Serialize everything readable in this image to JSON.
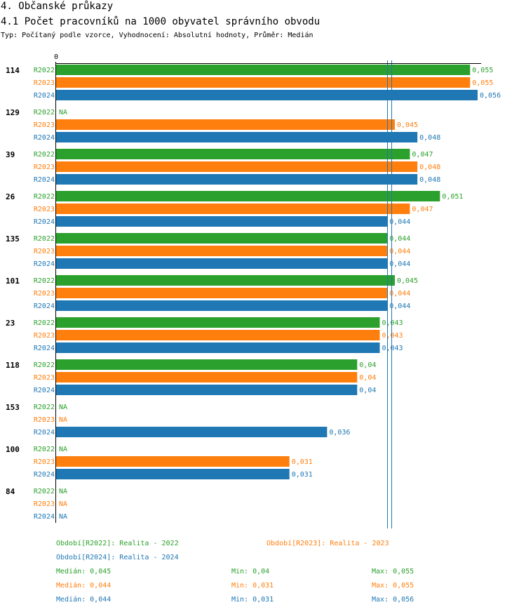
{
  "header": {
    "section": "4. Občanské průkazy",
    "title": "4.1 Počet pracovníků na 1000 obyvatel správního obvodu",
    "subtitle": "Typ: Počítaný podle vzorce, Vyhodnocení: Absolutní hodnoty, Průměr: Medián"
  },
  "colors": {
    "R2022": "#2ca02c",
    "R2023": "#ff7f0e",
    "R2024": "#1f77b4"
  },
  "chart_data": {
    "type": "bar",
    "orientation": "horizontal",
    "axis_origin_label": "0",
    "xlim": [
      0,
      0.056
    ],
    "na_label": "NA",
    "series_names": [
      "R2022",
      "R2023",
      "R2024"
    ],
    "categories": [
      "114",
      "129",
      "39",
      "26",
      "135",
      "101",
      "23",
      "118",
      "153",
      "100",
      "84"
    ],
    "series": [
      {
        "name": "R2022",
        "values": [
          0.055,
          null,
          0.047,
          0.051,
          0.044,
          0.045,
          0.043,
          0.04,
          null,
          null,
          null
        ],
        "labels": [
          "0,055",
          "NA",
          "0,047",
          "0,051",
          "0,044",
          "0,045",
          "0,043",
          "0,04",
          "NA",
          "NA",
          "NA"
        ]
      },
      {
        "name": "R2023",
        "values": [
          0.055,
          0.045,
          0.048,
          0.047,
          0.044,
          0.044,
          0.043,
          0.04,
          null,
          0.031,
          null
        ],
        "labels": [
          "0,055",
          "0,045",
          "0,048",
          "0,047",
          "0,044",
          "0,044",
          "0,043",
          "0,04",
          "NA",
          "0,031",
          "NA"
        ]
      },
      {
        "name": "R2024",
        "values": [
          0.056,
          0.048,
          0.048,
          0.044,
          0.044,
          0.044,
          0.043,
          0.04,
          0.036,
          0.031,
          null
        ],
        "labels": [
          "0,056",
          "0,048",
          "0,048",
          "0,044",
          "0,044",
          "0,044",
          "0,043",
          "0,04",
          "0,036",
          "0,031",
          "NA"
        ]
      }
    ],
    "reference_lines": [
      0.044,
      0.0445
    ]
  },
  "legend": {
    "periods": [
      "Období[R2022]: Realita - 2022",
      "Období[R2023]: Realita - 2023",
      "Období[R2024]: Realita - 2024"
    ],
    "stats": [
      {
        "median": "Medián: 0,045",
        "min": "Min: 0,04",
        "max": "Max: 0,055"
      },
      {
        "median": "Medián: 0,044",
        "min": "Min: 0,031",
        "max": "Max: 0,055"
      },
      {
        "median": "Medián: 0,044",
        "min": "Min: 0,031",
        "max": "Max: 0,056"
      }
    ]
  }
}
